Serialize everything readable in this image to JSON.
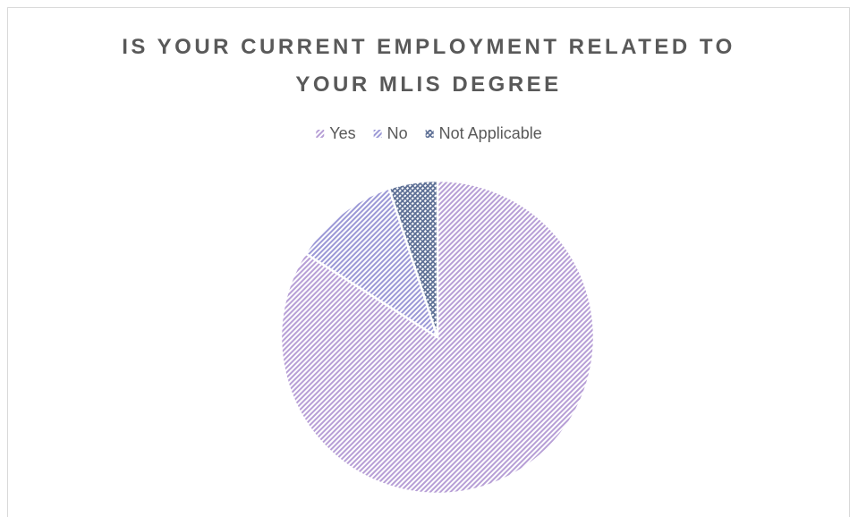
{
  "chart_data": {
    "type": "pie",
    "title": "IS YOUR CURRENT EMPLOYMENT RELATED TO YOUR MLIS DEGREE",
    "categories": [
      "Yes",
      "No",
      "Not Applicable"
    ],
    "values": [
      84,
      11,
      5
    ],
    "colors": [
      "#b79fd6",
      "#9b98d6",
      "#5f7196"
    ],
    "legend": "top"
  }
}
